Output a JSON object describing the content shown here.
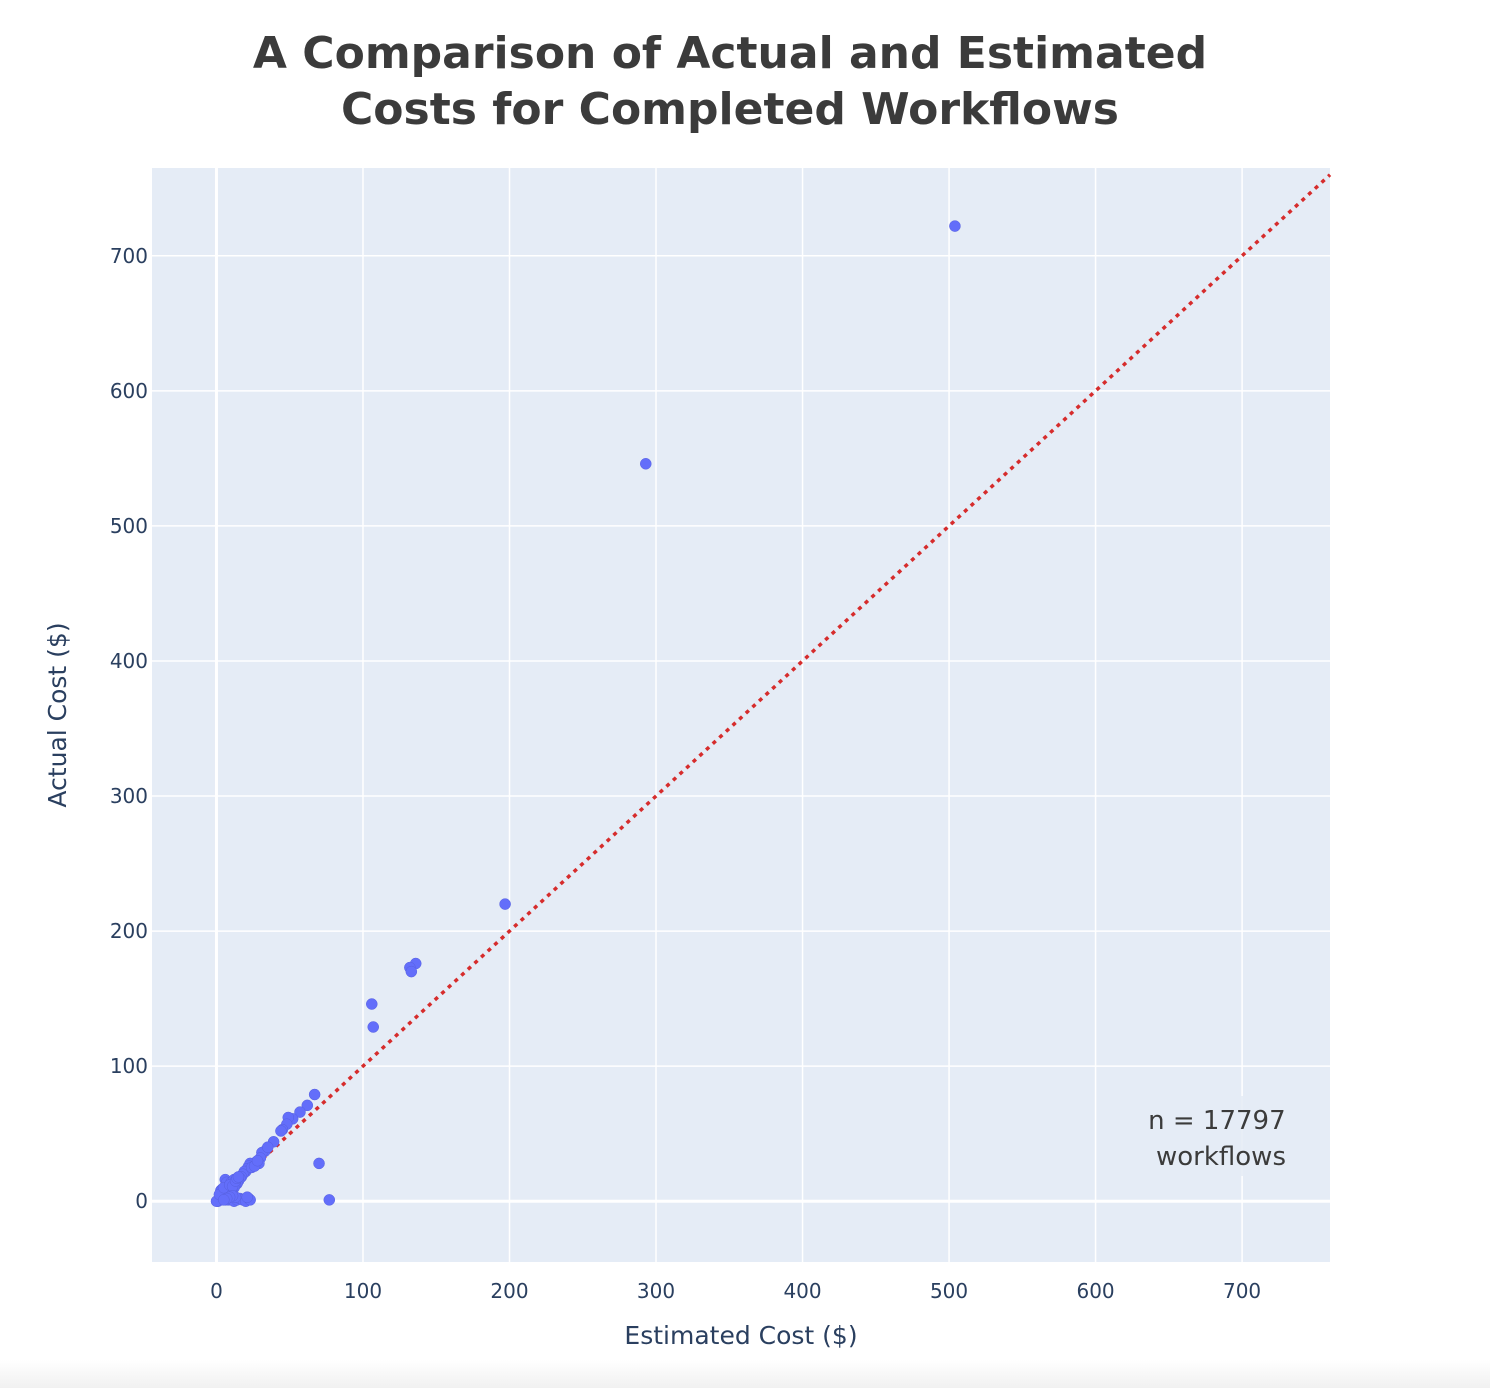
{
  "chart_data": {
    "type": "scatter",
    "title": [
      "A Comparison of Actual and Estimated",
      "Costs for Completed Workflows"
    ],
    "xlabel": "Estimated Cost ($)",
    "ylabel": "Actual Cost ($)",
    "xlim": [
      -44,
      760
    ],
    "ylim": [
      -45,
      765
    ],
    "xticks": [
      0,
      100,
      200,
      300,
      400,
      500,
      600,
      700
    ],
    "yticks": [
      0,
      100,
      200,
      300,
      400,
      500,
      600,
      700
    ],
    "xtick_labels": [
      "0",
      "100",
      "200",
      "300",
      "400",
      "500",
      "600",
      "700"
    ],
    "ytick_labels": [
      "0",
      "100",
      "200",
      "300",
      "400",
      "500",
      "600",
      "700"
    ],
    "grid": true,
    "reference_line": {
      "style": "dotted",
      "color": "#d62c2c",
      "x": [
        0,
        760
      ],
      "y": [
        0,
        760
      ]
    },
    "annotation": [
      "n = 17797",
      "workflows"
    ],
    "colors": {
      "points": "#636efa",
      "plot_bg": "#e5ecf6",
      "grid": "#ffffff",
      "reference": "#d62c2c"
    },
    "points": [
      [
        504,
        722
      ],
      [
        293,
        546
      ],
      [
        197,
        220
      ],
      [
        136,
        176
      ],
      [
        132,
        173
      ],
      [
        133,
        170
      ],
      [
        106,
        146
      ],
      [
        107,
        129
      ],
      [
        67,
        79
      ],
      [
        62,
        71
      ],
      [
        57,
        66
      ],
      [
        52,
        61
      ],
      [
        49,
        62
      ],
      [
        48,
        57
      ],
      [
        45,
        53
      ],
      [
        44,
        52
      ],
      [
        39,
        44
      ],
      [
        33,
        37
      ],
      [
        31,
        36
      ],
      [
        30,
        32
      ],
      [
        29,
        28
      ],
      [
        27,
        29
      ],
      [
        25,
        27
      ],
      [
        23,
        28
      ],
      [
        22,
        26
      ],
      [
        21,
        24
      ],
      [
        20,
        22
      ],
      [
        19,
        22
      ],
      [
        18,
        20
      ],
      [
        17,
        18
      ],
      [
        16,
        17
      ],
      [
        15,
        15
      ],
      [
        14,
        13
      ],
      [
        13,
        12
      ],
      [
        12,
        10
      ],
      [
        11,
        9
      ],
      [
        10,
        8
      ],
      [
        9,
        7
      ],
      [
        8,
        6
      ],
      [
        7,
        5
      ],
      [
        6,
        4
      ],
      [
        5,
        3
      ],
      [
        4,
        2
      ],
      [
        3,
        1
      ],
      [
        2,
        1
      ],
      [
        1,
        0
      ],
      [
        0,
        0
      ],
      [
        6,
        16
      ],
      [
        7,
        14
      ],
      [
        8,
        11
      ],
      [
        3,
        8
      ],
      [
        4,
        9
      ],
      [
        2,
        5
      ],
      [
        10,
        14
      ],
      [
        12,
        16
      ],
      [
        5,
        10
      ],
      [
        9,
        12
      ],
      [
        11,
        11
      ],
      [
        13,
        15
      ],
      [
        14,
        17
      ],
      [
        15,
        18
      ],
      [
        6,
        1
      ],
      [
        8,
        1
      ],
      [
        10,
        1
      ],
      [
        12,
        0
      ],
      [
        14,
        1
      ],
      [
        16,
        2
      ],
      [
        18,
        1
      ],
      [
        20,
        0
      ],
      [
        22,
        2
      ],
      [
        23,
        1
      ],
      [
        21,
        3
      ],
      [
        13,
        3
      ],
      [
        11,
        4
      ],
      [
        9,
        3
      ],
      [
        7,
        2
      ],
      [
        5,
        1
      ],
      [
        24,
        25
      ],
      [
        26,
        26
      ],
      [
        28,
        30
      ],
      [
        35,
        40
      ],
      [
        70,
        28
      ],
      [
        77,
        1
      ]
    ]
  }
}
